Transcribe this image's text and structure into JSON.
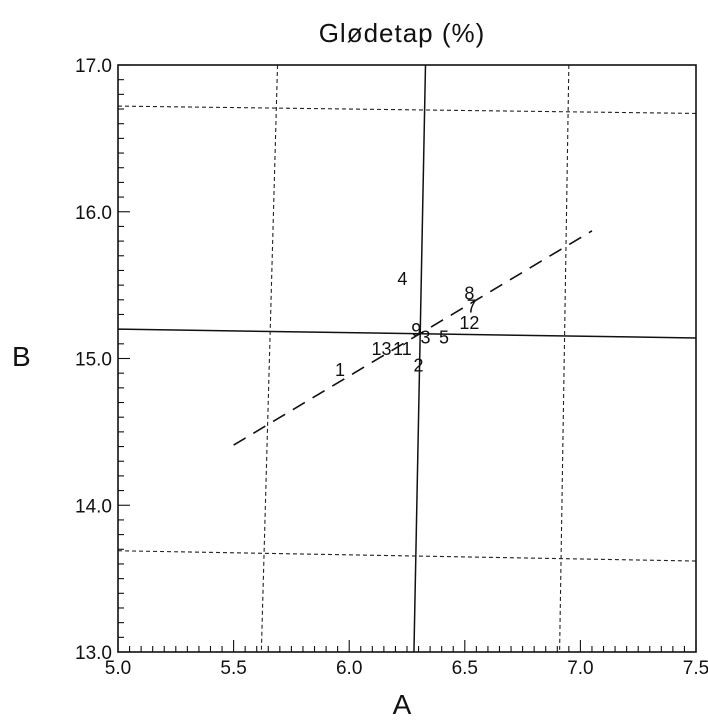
{
  "chart_data": {
    "type": "scatter",
    "title": "Glødetap (%)",
    "xlabel": "A",
    "ylabel": "B",
    "xlim": [
      5.0,
      7.5
    ],
    "ylim": [
      13.0,
      17.0
    ],
    "x_ticks": [
      {
        "value": 5.0,
        "label": "5.0"
      },
      {
        "value": 5.5,
        "label": "5.5"
      },
      {
        "value": 6.0,
        "label": "6.0"
      },
      {
        "value": 6.5,
        "label": "6.5"
      },
      {
        "value": 7.0,
        "label": "7.0"
      },
      {
        "value": 7.5,
        "label": "7.5"
      }
    ],
    "y_ticks": [
      {
        "value": 13.0,
        "label": "13.0"
      },
      {
        "value": 14.0,
        "label": "14.0"
      },
      {
        "value": 15.0,
        "label": "15.0"
      },
      {
        "value": 16.0,
        "label": "16.0"
      },
      {
        "value": 17.0,
        "label": "17.0"
      }
    ],
    "points": [
      {
        "label": "1",
        "x": 5.96,
        "y": 14.93
      },
      {
        "label": "2",
        "x": 6.3,
        "y": 14.96
      },
      {
        "label": "4",
        "x": 6.23,
        "y": 15.55
      },
      {
        "label": "5",
        "x": 6.41,
        "y": 15.15
      },
      {
        "label": "8",
        "x": 6.52,
        "y": 15.45
      },
      {
        "label": "7",
        "x": 6.53,
        "y": 15.36
      },
      {
        "label": "12",
        "x": 6.52,
        "y": 15.25
      },
      {
        "label": "13",
        "x": 6.14,
        "y": 15.07
      },
      {
        "label": "11",
        "x": 6.23,
        "y": 15.07
      },
      {
        "label": "9",
        "x": 6.29,
        "y": 15.2
      },
      {
        "label": "3",
        "x": 6.33,
        "y": 15.15
      }
    ],
    "fit_line": {
      "x": [
        5.5,
        7.05
      ],
      "y": [
        14.41,
        15.87
      ]
    },
    "reference_lines": {
      "solid": [
        {
          "x": [
            6.28,
            6.33
          ],
          "y": [
            13.0,
            17.0
          ]
        },
        {
          "x": [
            5.0,
            7.5
          ],
          "y": [
            15.2,
            15.14
          ]
        }
      ],
      "dotted": [
        {
          "x": [
            5.69,
            5.62
          ],
          "y": [
            17.0,
            13.0
          ]
        },
        {
          "x": [
            6.95,
            6.91
          ],
          "y": [
            17.0,
            13.0
          ]
        },
        {
          "x": [
            5.0,
            7.5
          ],
          "y": [
            16.72,
            16.67
          ]
        },
        {
          "x": [
            5.0,
            7.5
          ],
          "y": [
            13.69,
            13.62
          ]
        }
      ]
    },
    "grid": false,
    "legend": "none"
  }
}
